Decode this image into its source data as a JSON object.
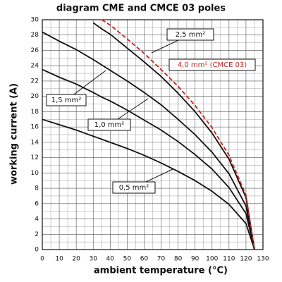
{
  "chart_data": {
    "type": "line",
    "title": "diagram CME and CMCE 03 poles",
    "x_label": "ambient temperature (°C)",
    "y_label": "working current (A)",
    "x": [
      0,
      10,
      20,
      30,
      35,
      40,
      50,
      60,
      70,
      80,
      90,
      100,
      110,
      120,
      125
    ],
    "series": [
      {
        "name": "0,5 mm²",
        "color": "#111111",
        "values": [
          17,
          16.3,
          15.6,
          14.8,
          14.4,
          14.0,
          13.2,
          12.3,
          11.3,
          10.2,
          9.0,
          7.6,
          5.9,
          3.4,
          0
        ]
      },
      {
        "name": "1,0 mm²",
        "color": "#111111",
        "values": [
          23.5,
          22.5,
          21.6,
          20.5,
          19.9,
          19.4,
          18.2,
          16.9,
          15.6,
          14.1,
          12.4,
          10.5,
          8.1,
          4.7,
          0
        ]
      },
      {
        "name": "1,5 mm²",
        "color": "#111111",
        "values": [
          28.4,
          27.2,
          26.1,
          24.8,
          24.1,
          23.4,
          22.0,
          20.5,
          18.9,
          17.0,
          15.0,
          12.7,
          9.9,
          5.7,
          0
        ]
      },
      {
        "name": "2,5 mm²",
        "color": "#111111",
        "values": [
          null,
          null,
          null,
          29.6,
          28.8,
          28.1,
          26.3,
          24.5,
          22.6,
          20.4,
          18.0,
          15.2,
          11.8,
          6.8,
          0
        ]
      },
      {
        "name": "4,0 mm² (CMCE 03)",
        "color": "#cc2222",
        "dashed": true,
        "values": [
          null,
          null,
          null,
          null,
          30.0,
          29.3,
          27.5,
          25.6,
          23.5,
          21.3,
          18.8,
          15.9,
          12.3,
          7.1,
          0
        ]
      }
    ],
    "xlim": [
      0,
      130
    ],
    "xticks": [
      0,
      10,
      20,
      30,
      40,
      50,
      60,
      70,
      80,
      90,
      100,
      110,
      120,
      130
    ],
    "ylim": [
      0,
      30
    ],
    "yticks": [
      0,
      2,
      4,
      6,
      8,
      10,
      12,
      14,
      16,
      18,
      20,
      22,
      24,
      26,
      28,
      30
    ],
    "grid": true
  }
}
